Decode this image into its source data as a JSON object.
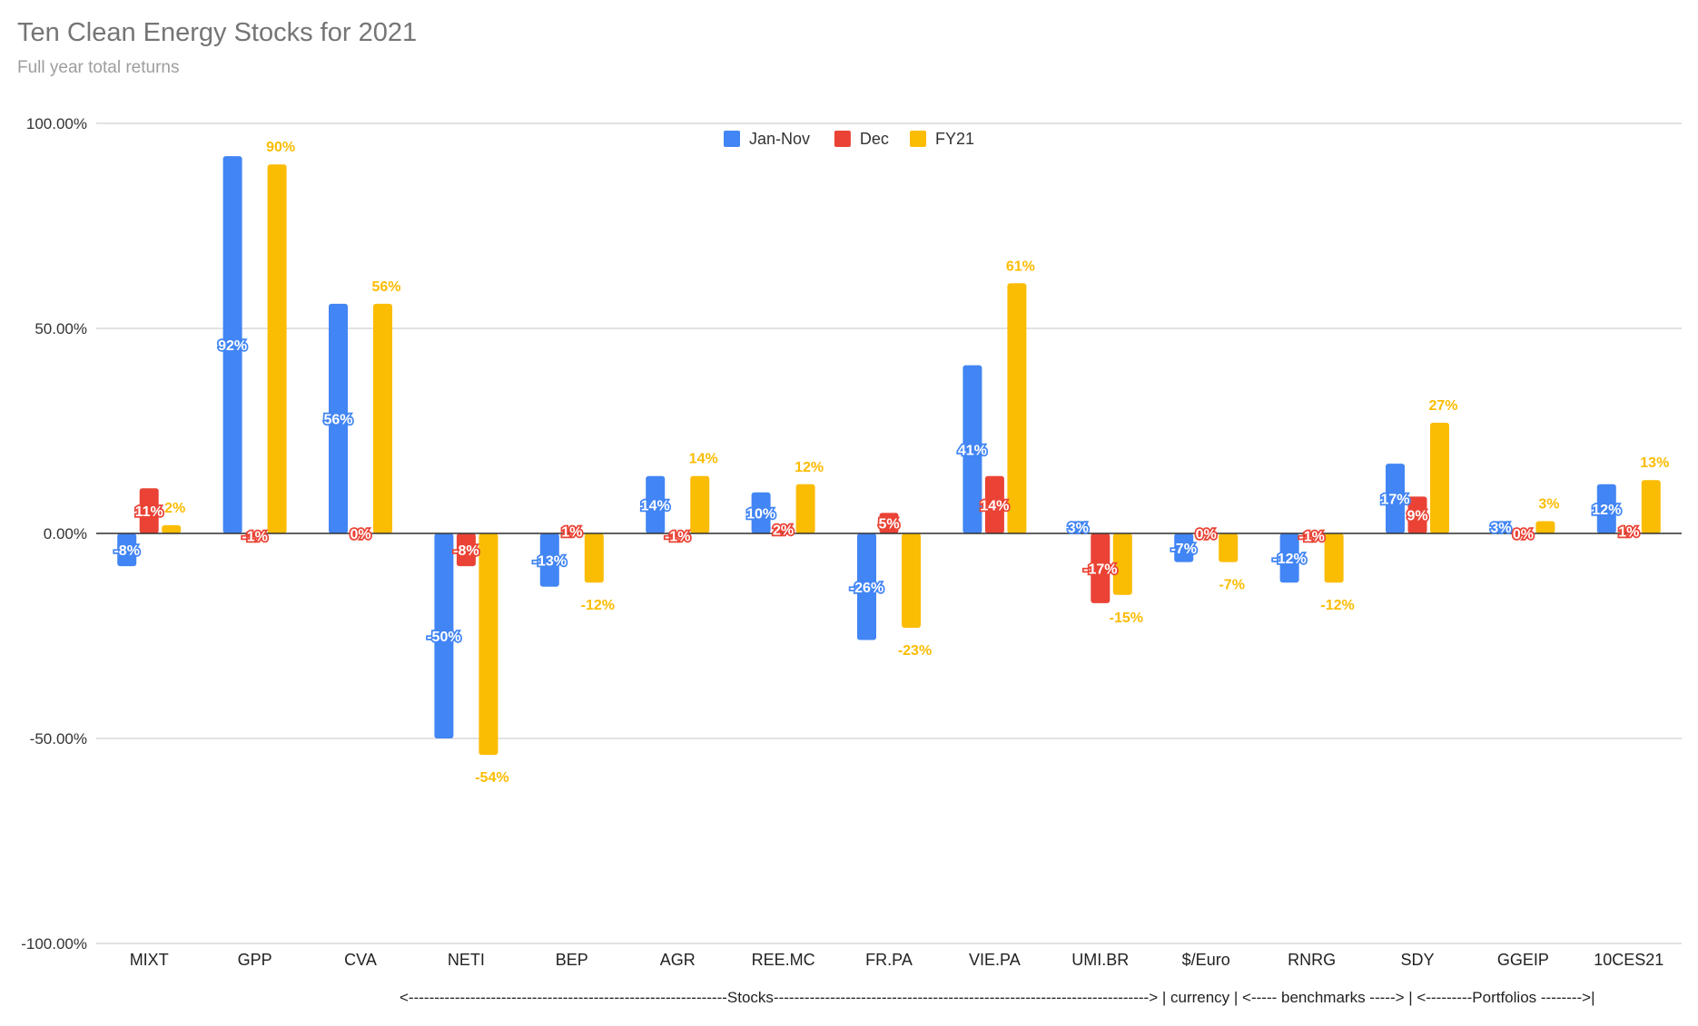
{
  "chart_data": {
    "type": "bar",
    "title": "Ten Clean Energy Stocks for 2021",
    "subtitle": "Full year total returns",
    "xlabel": "",
    "ylabel": "",
    "ylim": [
      -100,
      100
    ],
    "yticks": [
      100,
      50,
      0,
      -50,
      -100
    ],
    "ytick_labels": [
      "100.00%",
      "50.00%",
      "0.00%",
      "-50.00%",
      "-100.00%"
    ],
    "grid": true,
    "legend_position": "top-center",
    "categories": [
      "MIXT",
      "GPP",
      "CVA",
      "NETI",
      "BEP",
      "AGR",
      "REE.MC",
      "FR.PA",
      "VIE.PA",
      "UMI.BR",
      "$/Euro",
      "RNRG",
      "SDY",
      "GGEIP",
      "10CES21"
    ],
    "series": [
      {
        "name": "Jan-Nov",
        "color": "#4285f4",
        "values": [
          -8,
          92,
          56,
          -50,
          -13,
          14,
          10,
          -26,
          41,
          3,
          -7,
          -12,
          17,
          3,
          12
        ],
        "labels": [
          "-8%",
          "92%",
          "56%",
          "-50%",
          "-13%",
          "14%",
          "10%",
          "-26%",
          "41%",
          "3%",
          "-7%",
          "-12%",
          "17%",
          "3%",
          "12%"
        ]
      },
      {
        "name": "Dec",
        "color": "#ea4335",
        "values": [
          11,
          -1,
          0,
          -8,
          1,
          -1,
          2,
          5,
          14,
          -17,
          0,
          -1,
          9,
          0,
          1
        ],
        "labels": [
          "11%",
          "-1%",
          "0%",
          "-8%",
          "1%",
          "-1%",
          "2%",
          "5%",
          "14%",
          "-17%",
          "0%",
          "-1%",
          "9%",
          "0%",
          "1%"
        ]
      },
      {
        "name": "FY21",
        "color": "#fbbc04",
        "values": [
          2,
          90,
          56,
          -54,
          -12,
          14,
          12,
          -23,
          61,
          -15,
          -7,
          -12,
          27,
          3,
          13
        ],
        "labels": [
          "2%",
          "90%",
          "56%",
          "-54%",
          "-12%",
          "14%",
          "12%",
          "-23%",
          "61%",
          "-15%",
          "-7%",
          "-12%",
          "27%",
          "3%",
          "13%"
        ]
      }
    ],
    "footnote": "<--------------------------------------------------------------Stocks-------------------------------------------------------------------------> | currency | <----- benchmarks -----> | <---------Portfolios -------->|"
  }
}
